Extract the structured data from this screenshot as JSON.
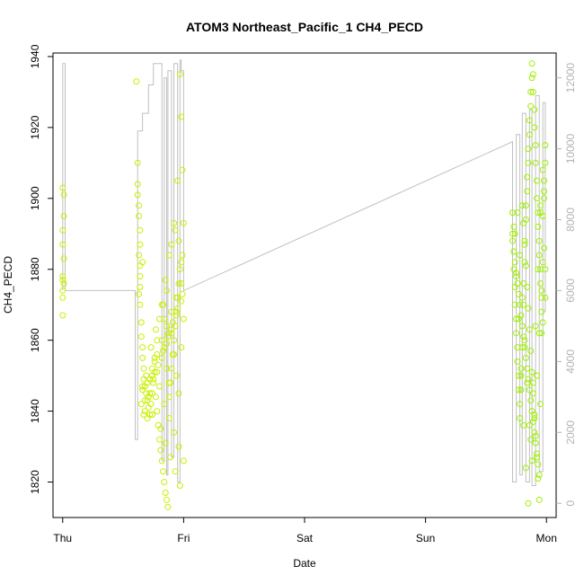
{
  "chart_data": {
    "type": "scatter",
    "title": "ATOM3 Northeast_Pacific_1 CH4_PECD",
    "xlabel": "Date",
    "ylabel": "CH4_PECD",
    "x_ticks": [
      "Thu",
      "Fri",
      "Sat",
      "Sun",
      "Mon"
    ],
    "xlim_days": [
      -0.08,
      4.08
    ],
    "ylim": [
      1810,
      1941
    ],
    "y_ticks": [
      1820,
      1840,
      1860,
      1880,
      1900,
      1920,
      1940
    ],
    "y2lim": [
      -400,
      12700
    ],
    "y2_ticks": [
      0,
      2000,
      4000,
      6000,
      8000,
      10000,
      12000
    ],
    "colors": {
      "points_early": "#c8f000",
      "points_late": "#9ef000",
      "line": "#c0c0c0"
    },
    "series": [
      {
        "kind": "points",
        "axis": "left",
        "x": [
          0.0,
          0.01,
          0.01,
          0.0,
          0.0,
          0.01,
          0.0,
          0.01,
          0.0,
          0.0,
          0.0,
          0.0,
          0.61,
          0.62,
          0.62,
          0.63,
          0.63,
          0.64,
          0.64,
          0.63,
          0.64,
          0.64,
          0.64,
          0.63,
          0.64,
          0.65,
          0.65,
          0.66,
          0.66,
          0.67,
          0.67,
          0.68,
          0.69,
          0.7,
          0.71,
          0.72,
          0.73,
          0.74,
          0.75,
          0.76,
          0.77,
          0.78,
          0.79,
          0.8,
          0.81,
          0.82,
          0.83,
          0.84,
          0.85,
          0.86,
          0.87,
          0.88,
          0.89,
          0.9,
          0.91,
          0.92,
          0.93,
          0.94,
          0.95,
          0.96,
          0.97,
          0.98,
          0.99,
          1.0,
          0.65,
          0.66,
          0.68,
          0.7,
          0.72,
          0.74,
          0.76,
          0.78,
          0.8,
          0.82,
          0.84,
          0.86,
          0.88,
          0.9,
          0.92,
          0.94,
          0.96,
          0.98,
          1.0,
          0.66,
          0.7,
          0.74,
          0.78,
          0.82,
          0.86,
          0.9,
          0.94,
          0.98,
          0.67,
          0.71,
          0.75,
          0.79,
          0.83,
          0.87,
          0.91,
          0.95,
          0.99,
          0.68,
          0.72,
          0.76,
          0.8,
          0.84,
          0.88,
          0.92,
          0.96,
          1.0,
          0.69,
          0.73,
          0.77,
          0.81,
          0.85,
          0.89,
          0.93,
          0.97,
          0.7,
          0.74,
          0.78,
          0.82,
          0.86,
          0.9,
          0.94,
          0.98,
          0.62,
          0.66,
          0.97,
          0.98,
          0.99,
          0.95,
          0.96,
          0.92,
          0.93,
          0.9,
          0.88,
          0.85,
          0.86,
          0.83,
          0.84,
          0.87
        ],
        "y": [
          1903,
          1901,
          1895,
          1891,
          1887,
          1883,
          1878,
          1876,
          1874,
          1872,
          1877,
          1867,
          1933,
          1904,
          1901,
          1898,
          1895,
          1891,
          1887,
          1884,
          1881,
          1878,
          1875,
          1873,
          1870,
          1865,
          1861,
          1858,
          1855,
          1852,
          1849,
          1847,
          1845,
          1843,
          1841,
          1839,
          1842,
          1845,
          1848,
          1851,
          1844,
          1840,
          1836,
          1832,
          1829,
          1826,
          1823,
          1820,
          1817,
          1815,
          1813,
          1844,
          1848,
          1852,
          1856,
          1860,
          1864,
          1868,
          1872,
          1876,
          1880,
          1882,
          1884,
          1893,
          1842,
          1846,
          1840,
          1838,
          1845,
          1850,
          1855,
          1860,
          1866,
          1870,
          1858,
          1852,
          1848,
          1862,
          1856,
          1850,
          1845,
          1858,
          1866,
          1847,
          1843,
          1839,
          1851,
          1855,
          1859,
          1863,
          1867,
          1871,
          1839,
          1844,
          1849,
          1853,
          1857,
          1861,
          1865,
          1869,
          1873,
          1843,
          1849,
          1854,
          1847,
          1842,
          1838,
          1834,
          1830,
          1826,
          1850,
          1858,
          1863,
          1835,
          1831,
          1827,
          1823,
          1819,
          1848,
          1852,
          1856,
          1860,
          1864,
          1868,
          1872,
          1876,
          1910,
          1882,
          1935,
          1923,
          1908,
          1905,
          1888,
          1893,
          1891,
          1887,
          1884,
          1877,
          1874,
          1870,
          1866,
          1862
        ],
        "color": "#c8f000"
      },
      {
        "kind": "points",
        "axis": "left",
        "x": [
          3.72,
          3.72,
          3.73,
          3.73,
          3.74,
          3.74,
          3.75,
          3.75,
          3.76,
          3.76,
          3.77,
          3.77,
          3.78,
          3.78,
          3.79,
          3.79,
          3.8,
          3.8,
          3.81,
          3.81,
          3.82,
          3.82,
          3.83,
          3.83,
          3.84,
          3.84,
          3.85,
          3.85,
          3.86,
          3.86,
          3.87,
          3.87,
          3.88,
          3.88,
          3.89,
          3.89,
          3.9,
          3.9,
          3.91,
          3.91,
          3.92,
          3.92,
          3.93,
          3.93,
          3.94,
          3.94,
          3.95,
          3.95,
          3.96,
          3.96,
          3.97,
          3.97,
          3.98,
          3.98,
          3.99,
          3.99,
          3.72,
          3.73,
          3.74,
          3.75,
          3.76,
          3.77,
          3.78,
          3.79,
          3.8,
          3.81,
          3.82,
          3.83,
          3.84,
          3.85,
          3.86,
          3.87,
          3.88,
          3.89,
          3.9,
          3.91,
          3.92,
          3.93,
          3.94,
          3.95,
          3.96,
          3.97,
          3.98,
          3.99,
          3.73,
          3.75,
          3.77,
          3.79,
          3.81,
          3.83,
          3.85,
          3.87,
          3.89,
          3.91,
          3.93,
          3.95,
          3.97,
          3.99,
          3.74,
          3.76,
          3.78,
          3.8,
          3.82,
          3.84,
          3.86,
          3.88,
          3.9,
          3.92,
          3.94,
          3.96,
          3.98,
          3.8,
          3.81,
          3.82,
          3.83,
          3.84,
          3.85,
          3.86,
          3.87,
          3.88,
          3.89,
          3.9,
          3.91,
          3.92,
          3.93,
          3.94,
          3.95
        ],
        "y": [
          1896,
          1890,
          1885,
          1880,
          1875,
          1870,
          1866,
          1862,
          1858,
          1854,
          1850,
          1846,
          1842,
          1838,
          1846,
          1852,
          1858,
          1864,
          1870,
          1876,
          1882,
          1888,
          1894,
          1898,
          1902,
          1906,
          1910,
          1914,
          1918,
          1922,
          1926,
          1930,
          1934,
          1938,
          1935,
          1930,
          1925,
          1920,
          1915,
          1910,
          1905,
          1900,
          1896,
          1892,
          1888,
          1884,
          1880,
          1876,
          1872,
          1868,
          1865,
          1895,
          1900,
          1905,
          1910,
          1915,
          1888,
          1885,
          1882,
          1879,
          1876,
          1873,
          1870,
          1867,
          1864,
          1861,
          1858,
          1855,
          1852,
          1849,
          1846,
          1843,
          1840,
          1837,
          1834,
          1831,
          1828,
          1825,
          1822,
          1842,
          1862,
          1882,
          1902,
          1880,
          1892,
          1878,
          1866,
          1850,
          1836,
          1824,
          1814,
          1832,
          1848,
          1864,
          1880,
          1896,
          1908,
          1872,
          1890,
          1896,
          1884,
          1872,
          1860,
          1848,
          1836,
          1826,
          1838,
          1850,
          1862,
          1874,
          1886,
          1898,
          1893,
          1887,
          1881,
          1875,
          1869,
          1863,
          1857,
          1851,
          1845,
          1839,
          1833,
          1827,
          1821,
          1815,
          1898
        ],
        "color": "#9ef000"
      },
      {
        "kind": "line",
        "axis": "right",
        "x": [
          0.0,
          0.0,
          0.0,
          0.02,
          0.02,
          0.6,
          0.6,
          0.62,
          0.62,
          0.66,
          0.66,
          0.71,
          0.71,
          0.75,
          0.75,
          0.82,
          0.82,
          0.84,
          0.84,
          0.86,
          0.86,
          0.87,
          0.87,
          0.9,
          0.9,
          0.92,
          0.92,
          0.95,
          0.95,
          0.97,
          0.97,
          0.98,
          0.98,
          1.0,
          1.0,
          3.72,
          3.72,
          3.75,
          3.75,
          3.78,
          3.78,
          3.8,
          3.8,
          3.83,
          3.83,
          3.86,
          3.86,
          3.88,
          3.88,
          3.91,
          3.91,
          3.94,
          3.94,
          3.97,
          3.97,
          3.99,
          3.99
        ],
        "y": [
          6000,
          12400,
          12400,
          12400,
          6000,
          6000,
          1800,
          1800,
          10500,
          10500,
          11000,
          11000,
          11800,
          11800,
          12400,
          12400,
          1200,
          1200,
          12000,
          12000,
          800,
          800,
          12200,
          12200,
          1300,
          1300,
          12400,
          12400,
          600,
          600,
          12500,
          12500,
          12200,
          12200,
          6000,
          10200,
          600,
          600,
          10400,
          10400,
          800,
          800,
          11000,
          11000,
          600,
          600,
          11100,
          11100,
          500,
          500,
          11500,
          11500,
          900,
          900,
          11300,
          11300,
          5400
        ],
        "color": "#c0c0c0"
      }
    ],
    "grid": false,
    "legend": "none"
  }
}
